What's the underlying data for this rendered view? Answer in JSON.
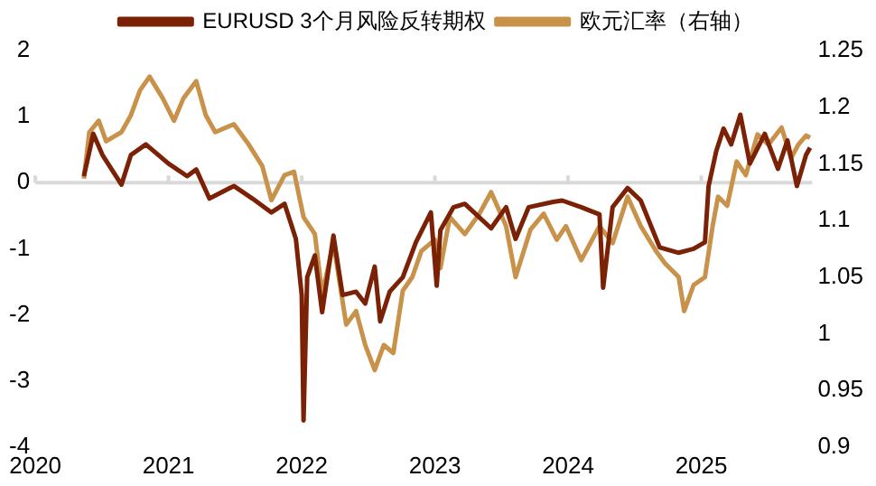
{
  "chart_data": {
    "type": "line",
    "xlim": [
      "2020-01-01",
      "2025-11-01"
    ],
    "xticks": [
      "2020",
      "2021",
      "2022",
      "2023",
      "2024",
      "2025"
    ],
    "ylim": [
      -4,
      2
    ],
    "yticks": [
      -4,
      -3,
      -2,
      -1,
      0,
      1,
      2
    ],
    "y2lim": [
      0.9,
      1.25
    ],
    "y2ticks": [
      0.9,
      0.95,
      1,
      1.05,
      1.1,
      1.15,
      1.2,
      1.25
    ],
    "legend": "top",
    "grid": false,
    "ref_lines": [
      {
        "axis": "y",
        "value": 0,
        "color": "#d9d9d9"
      }
    ],
    "series": [
      {
        "name": "EURUSD 3个月风险反转期权",
        "color": "#7b2106",
        "x": [
          "2020-05-14",
          "2020-06-09",
          "2020-07-04",
          "2020-08-25",
          "2020-09-20",
          "2020-10-31",
          "2021-01-01",
          "2021-02-21",
          "2021-03-18",
          "2021-04-23",
          "2021-06-29",
          "2021-08-19",
          "2021-10-10",
          "2021-11-15",
          "2021-12-16",
          "2022-01-01",
          "2022-01-06",
          "2022-01-16",
          "2022-02-06",
          "2022-02-26",
          "2022-03-29",
          "2022-04-23",
          "2022-05-30",
          "2022-06-24",
          "2022-07-20",
          "2022-08-04",
          "2022-08-30",
          "2022-10-05",
          "2022-11-10",
          "2022-12-21",
          "2023-01-06",
          "2023-01-16",
          "2023-02-21",
          "2023-03-24",
          "2023-06-04",
          "2023-07-15",
          "2023-08-10",
          "2023-09-15",
          "2023-11-21",
          "2023-12-16",
          "2024-02-06",
          "2024-03-28",
          "2024-04-07",
          "2024-05-03",
          "2024-06-13",
          "2024-07-19",
          "2024-09-09",
          "2024-10-31",
          "2024-12-11",
          "2025-01-11",
          "2025-01-21",
          "2025-02-11",
          "2025-03-03",
          "2025-03-24",
          "2025-04-18",
          "2025-05-14",
          "2025-06-24",
          "2025-07-30",
          "2025-08-25",
          "2025-09-20",
          "2025-10-15",
          "2025-10-26"
        ],
        "values": [
          0.1,
          0.74,
          0.42,
          -0.03,
          0.42,
          0.58,
          0.29,
          0.1,
          0.2,
          -0.24,
          -0.05,
          -0.24,
          -0.45,
          -0.32,
          -0.85,
          -1.7,
          -3.6,
          -1.43,
          -1.1,
          -1.96,
          -0.8,
          -1.7,
          -1.65,
          -1.83,
          -1.27,
          -2.1,
          -1.65,
          -1.43,
          -0.9,
          -0.45,
          -1.56,
          -0.72,
          -0.37,
          -0.32,
          -0.69,
          -0.37,
          -0.85,
          -0.37,
          -0.29,
          -0.27,
          -0.37,
          -0.48,
          -1.59,
          -0.37,
          -0.08,
          -0.27,
          -0.98,
          -1.06,
          -1.0,
          -0.9,
          -0.05,
          0.48,
          0.82,
          0.58,
          1.03,
          0.29,
          0.74,
          0.21,
          0.64,
          -0.05,
          0.42,
          0.53
        ]
      },
      {
        "name": "欧元汇率（右轴）",
        "color": "#c8924a",
        "axis": "y2",
        "x": [
          "2020-05-14",
          "2020-05-29",
          "2020-06-24",
          "2020-07-14",
          "2020-08-25",
          "2020-09-20",
          "2020-10-15",
          "2020-11-10",
          "2020-12-16",
          "2021-01-16",
          "2021-02-11",
          "2021-03-18",
          "2021-04-13",
          "2021-05-09",
          "2021-06-29",
          "2021-08-09",
          "2021-09-15",
          "2021-10-10",
          "2021-11-15",
          "2021-12-11",
          "2022-01-06",
          "2022-02-06",
          "2022-02-26",
          "2022-03-29",
          "2022-05-03",
          "2022-05-30",
          "2022-06-24",
          "2022-07-20",
          "2022-08-14",
          "2022-09-09",
          "2022-10-05",
          "2022-10-31",
          "2022-11-25",
          "2023-01-01",
          "2023-01-16",
          "2023-02-11",
          "2023-03-24",
          "2023-05-03",
          "2023-06-04",
          "2023-07-15",
          "2023-08-10",
          "2023-09-20",
          "2023-10-26",
          "2023-12-01",
          "2023-12-26",
          "2024-02-06",
          "2024-03-28",
          "2024-05-03",
          "2024-06-13",
          "2024-07-19",
          "2024-08-30",
          "2024-09-24",
          "2024-10-31",
          "2024-11-15",
          "2024-12-11",
          "2025-01-11",
          "2025-02-01",
          "2025-02-16",
          "2025-03-13",
          "2025-04-08",
          "2025-05-03",
          "2025-06-04",
          "2025-07-04",
          "2025-08-09",
          "2025-09-04",
          "2025-09-24",
          "2025-10-15",
          "2025-10-26"
        ],
        "values": [
          1.137,
          1.178,
          1.188,
          1.17,
          1.178,
          1.193,
          1.215,
          1.227,
          1.208,
          1.188,
          1.208,
          1.223,
          1.193,
          1.178,
          1.185,
          1.167,
          1.148,
          1.118,
          1.14,
          1.143,
          1.103,
          1.088,
          1.035,
          1.08,
          1.008,
          1.02,
          0.99,
          0.968,
          0.99,
          0.983,
          1.038,
          1.05,
          1.073,
          1.083,
          1.058,
          1.103,
          1.088,
          1.106,
          1.125,
          1.095,
          1.05,
          1.092,
          1.106,
          1.083,
          1.095,
          1.065,
          1.095,
          1.08,
          1.121,
          1.095,
          1.073,
          1.062,
          1.05,
          1.02,
          1.043,
          1.05,
          1.095,
          1.121,
          1.113,
          1.152,
          1.14,
          1.176,
          1.167,
          1.182,
          1.155,
          1.167,
          1.175,
          1.173
        ]
      }
    ]
  }
}
